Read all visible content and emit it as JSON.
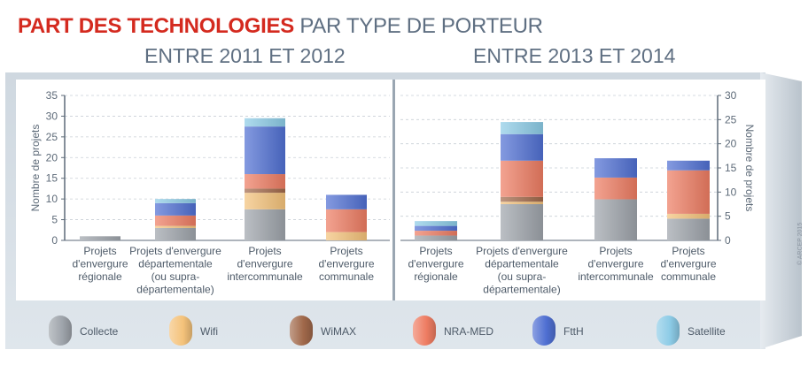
{
  "title": {
    "part1": "PART DES TECHNOLOGIES",
    "part2": "PAR TYPE DE PORTEUR"
  },
  "copyright": "© ARCEP 2015",
  "legend": [
    {
      "name": "Collecte",
      "color": "#9ea4ab"
    },
    {
      "name": "Wifi",
      "color": "#f4c27a"
    },
    {
      "name": "WiMAX",
      "color": "#a0684a"
    },
    {
      "name": "NRA-MED",
      "color": "#ee7c62"
    },
    {
      "name": "FttH",
      "color": "#4f6fd2"
    },
    {
      "name": "Satellite",
      "color": "#8ccbe6"
    }
  ],
  "chart_data": [
    {
      "type": "bar",
      "stacked": true,
      "title": "ENTRE 2011 ET 2012",
      "ylabel": "Nombre de projets",
      "ylim": [
        0,
        35
      ],
      "yticks": [
        0,
        5,
        10,
        15,
        20,
        25,
        30,
        35
      ],
      "y_axis_side": "left",
      "categories": [
        [
          "Projets",
          "d'envergure",
          "régionale"
        ],
        [
          "Projets d'envergure",
          "départementale",
          "(ou supra-",
          "départementale)"
        ],
        [
          "Projets",
          "d'envergure",
          "intercommunale"
        ],
        [
          "Projets",
          "d'envergure",
          "communale"
        ]
      ],
      "series": [
        {
          "name": "Collecte",
          "values": [
            1,
            3,
            7.5,
            0
          ]
        },
        {
          "name": "Wifi",
          "values": [
            0,
            0.5,
            4,
            2
          ]
        },
        {
          "name": "WiMAX",
          "values": [
            0,
            0,
            1,
            0
          ]
        },
        {
          "name": "NRA-MED",
          "values": [
            0,
            2.5,
            3.5,
            5.5
          ]
        },
        {
          "name": "FttH",
          "values": [
            0,
            3,
            11.5,
            3.5
          ]
        },
        {
          "name": "Satellite",
          "values": [
            0,
            1,
            2,
            0
          ]
        }
      ]
    },
    {
      "type": "bar",
      "stacked": true,
      "title": "ENTRE 2013 ET 2014",
      "ylabel": "Nombre de projets",
      "ylim": [
        0,
        30
      ],
      "yticks": [
        0,
        5,
        10,
        15,
        20,
        25,
        30
      ],
      "y_axis_side": "right",
      "categories": [
        [
          "Projets",
          "d'envergure",
          "régionale"
        ],
        [
          "Projets d'envergure",
          "départementale",
          "(ou supra-",
          "départementale)"
        ],
        [
          "Projets",
          "d'envergure",
          "intercommunale"
        ],
        [
          "Projets",
          "d'envergure",
          "communale"
        ]
      ],
      "series": [
        {
          "name": "Collecte",
          "values": [
            1,
            7.5,
            8.5,
            4.5
          ]
        },
        {
          "name": "Wifi",
          "values": [
            0,
            0.5,
            0,
            1
          ]
        },
        {
          "name": "WiMAX",
          "values": [
            0,
            1,
            0,
            0
          ]
        },
        {
          "name": "NRA-MED",
          "values": [
            1,
            7.5,
            4.5,
            9
          ]
        },
        {
          "name": "FttH",
          "values": [
            1,
            5.5,
            4,
            2
          ]
        },
        {
          "name": "Satellite",
          "values": [
            1,
            2.5,
            0,
            0
          ]
        }
      ]
    }
  ]
}
